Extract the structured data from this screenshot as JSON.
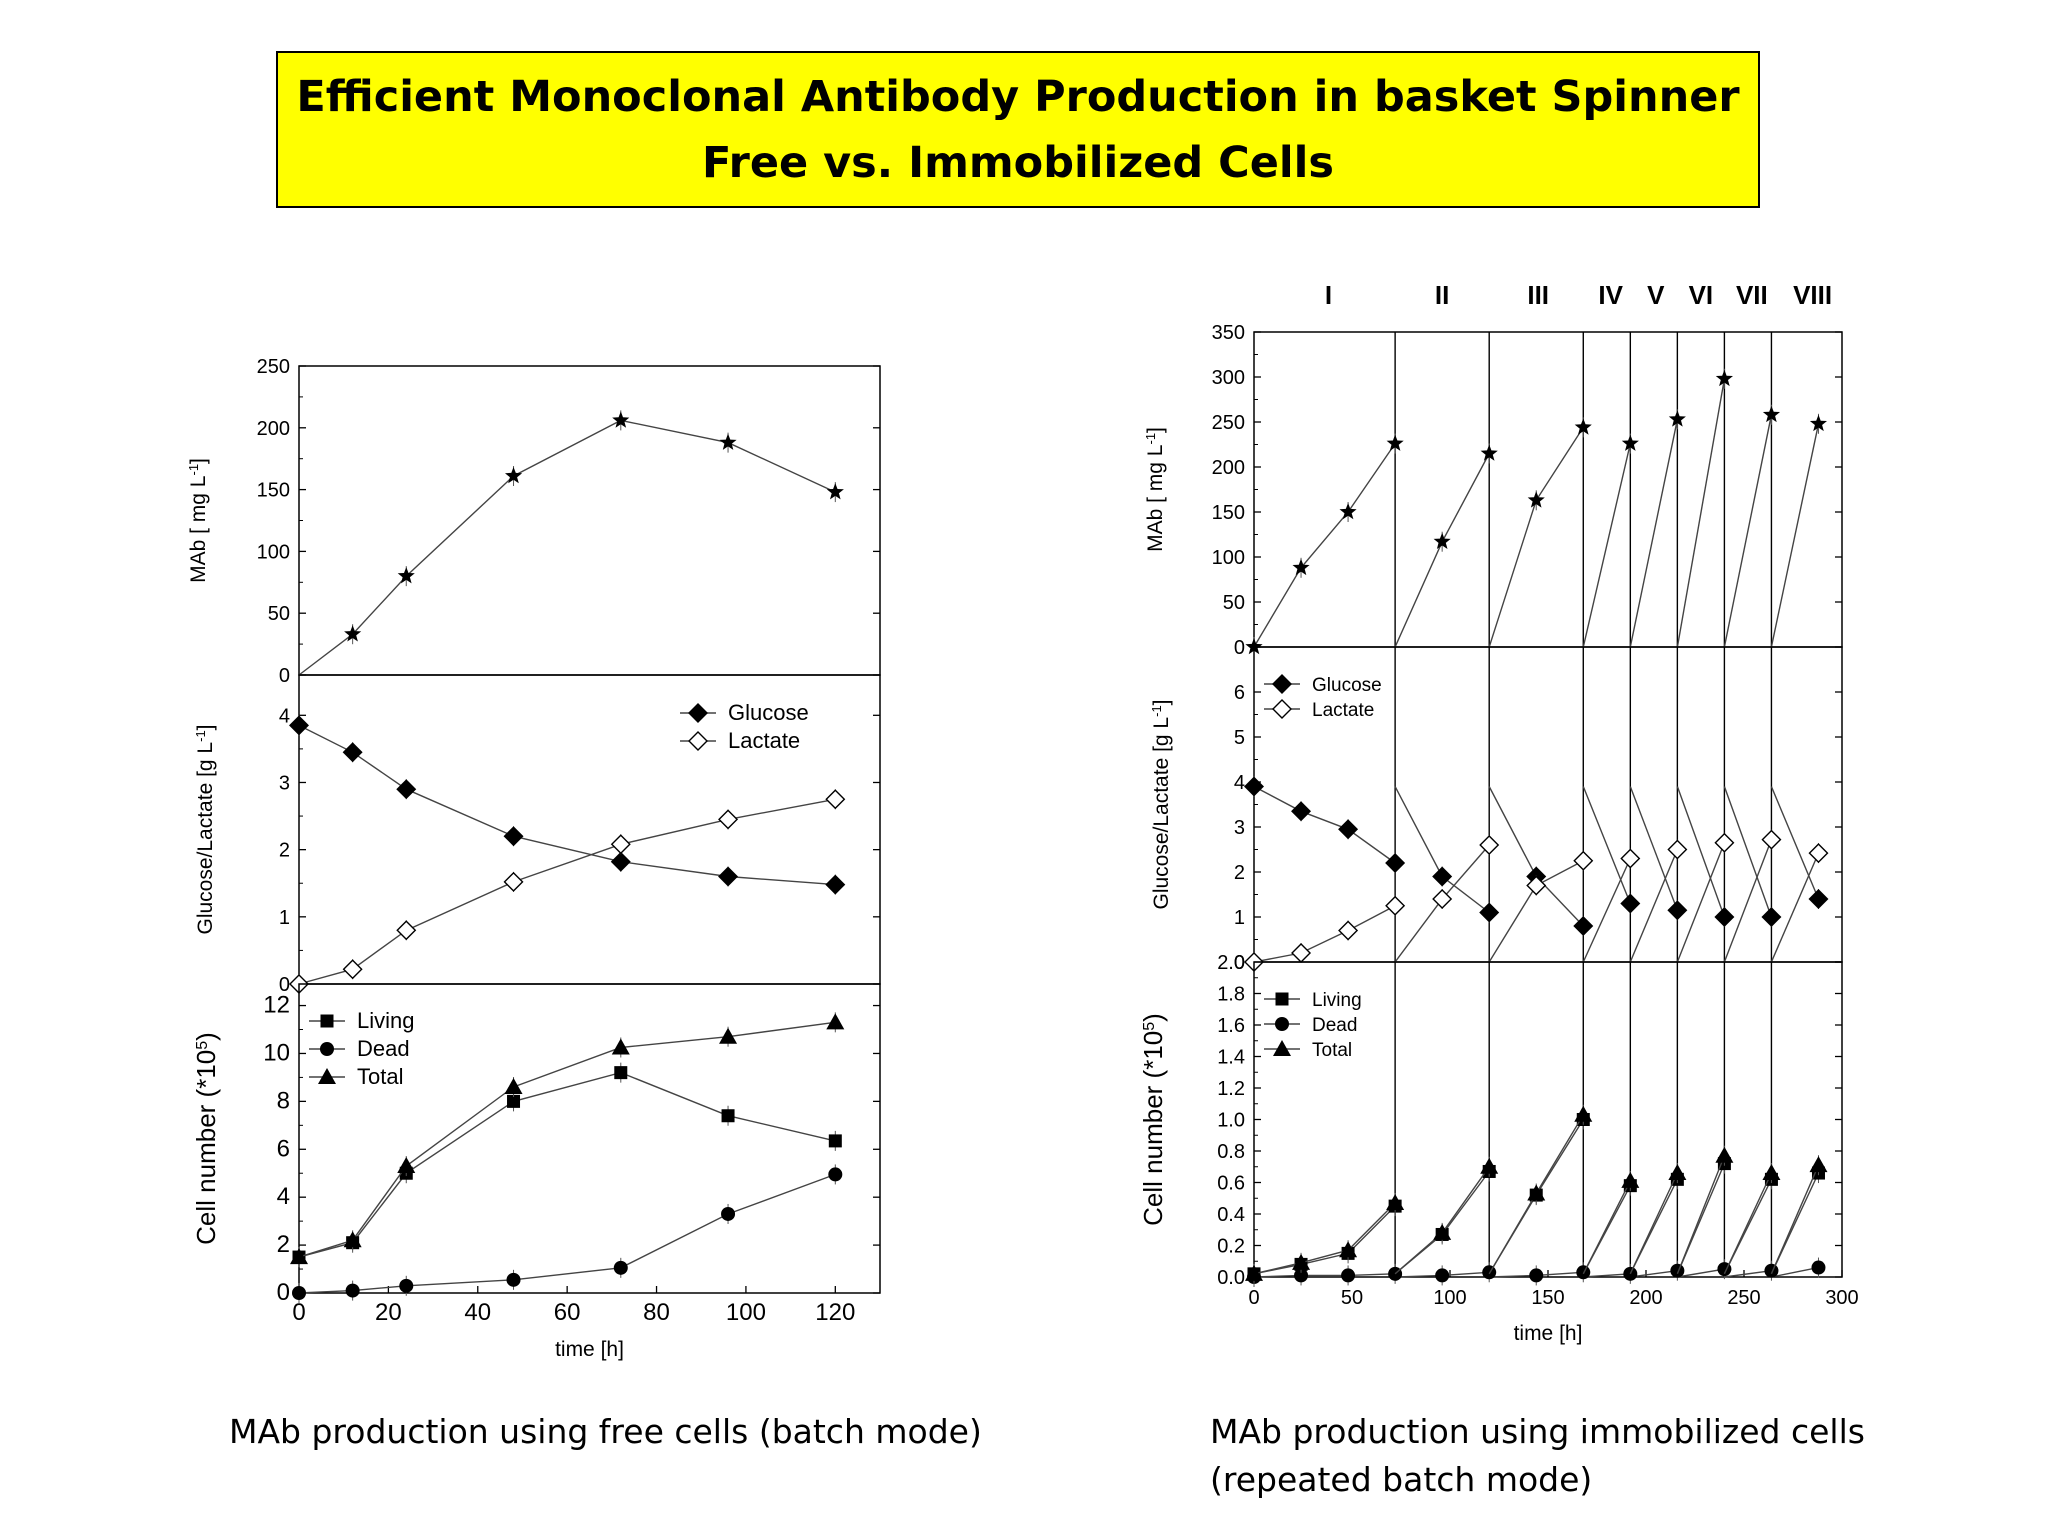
{
  "title": {
    "line1": "Efficient Monoclonal Antibody Production in basket Spinner",
    "line2": "Free vs. Immobilized Cells"
  },
  "captions": {
    "left": "MAb production using free cells (batch mode)",
    "right_line1": "MAb production using immobilized cells",
    "right_line2": "(repeated batch mode)"
  },
  "chart_data": [
    {
      "type": "line",
      "panel": "left-mab",
      "xlim": [
        0,
        130
      ],
      "ylim": [
        0,
        250
      ],
      "yticks": [
        0,
        50,
        100,
        150,
        200,
        250
      ],
      "ylabel": "MAb [ mg L-1]",
      "xlabel": "",
      "series": [
        {
          "marker": "star",
          "x": [
            0,
            12,
            24,
            48,
            72,
            96,
            120
          ],
          "y": [
            0,
            33,
            80,
            161,
            206,
            188,
            148
          ]
        }
      ]
    },
    {
      "type": "line",
      "panel": "left-gl",
      "xlim": [
        0,
        130
      ],
      "ylim": [
        0,
        4.6
      ],
      "yticks": [
        0,
        1,
        2,
        3,
        4
      ],
      "ylabel": "Glucose/Lactate [g L-1]",
      "legend_position": "top-right",
      "series": [
        {
          "name": "Glucose",
          "marker": "diamond-filled",
          "x": [
            0,
            12,
            24,
            48,
            72,
            96,
            120
          ],
          "y": [
            3.85,
            3.45,
            2.9,
            2.2,
            1.82,
            1.6,
            1.48
          ]
        },
        {
          "name": "Lactate",
          "marker": "diamond-open",
          "x": [
            0,
            12,
            24,
            48,
            72,
            96,
            120
          ],
          "y": [
            0,
            0.22,
            0.8,
            1.52,
            2.08,
            2.45,
            2.75
          ]
        }
      ]
    },
    {
      "type": "line",
      "panel": "left-cells",
      "xlim": [
        0,
        130
      ],
      "ylim": [
        0,
        12.9
      ],
      "yticks": [
        0,
        2,
        4,
        6,
        8,
        10,
        12
      ],
      "xticks": [
        0,
        20,
        40,
        60,
        80,
        100,
        120
      ],
      "ylabel": "Cell number (*10",
      "ylabel_sup": "5",
      "ylabel_tail": ")",
      "xlabel": "time [h]",
      "legend_position": "top-left",
      "series": [
        {
          "name": "Living",
          "marker": "square",
          "x": [
            0,
            12,
            24,
            48,
            72,
            96,
            120
          ],
          "y": [
            1.5,
            2.1,
            5.0,
            8.0,
            9.2,
            7.4,
            6.35
          ]
        },
        {
          "name": "Dead",
          "marker": "circle",
          "x": [
            0,
            12,
            24,
            48,
            72,
            96,
            120
          ],
          "y": [
            0,
            0.1,
            0.3,
            0.55,
            1.05,
            3.3,
            4.95
          ]
        },
        {
          "name": "Total",
          "marker": "triangle",
          "x": [
            0,
            12,
            24,
            48,
            72,
            96,
            120
          ],
          "y": [
            1.5,
            2.2,
            5.3,
            8.6,
            10.25,
            10.7,
            11.3
          ]
        }
      ]
    },
    {
      "type": "line",
      "panel": "right-mab",
      "xlim": [
        0,
        300
      ],
      "ylim": [
        0,
        350
      ],
      "yticks": [
        0,
        50,
        100,
        150,
        200,
        250,
        300,
        350
      ],
      "ylabel": "MAb [ mg L-1]",
      "phase_labels": [
        "I",
        "II",
        "III",
        "IV",
        "V",
        "VI",
        "VII",
        "VIII"
      ],
      "phase_label_x": [
        38,
        96,
        145,
        182,
        205,
        228,
        254,
        285
      ],
      "batch_boundaries": [
        72,
        120,
        168,
        192,
        216,
        240,
        264
      ],
      "series": [
        {
          "marker": "star",
          "segments": [
            [
              [
                0,
                0
              ],
              [
                24,
                88
              ],
              [
                48,
                150
              ],
              [
                72,
                226
              ]
            ],
            [
              [
                72,
                0
              ],
              [
                96,
                117
              ],
              [
                120,
                215
              ]
            ],
            [
              [
                120,
                0
              ],
              [
                144,
                163
              ],
              [
                168,
                244
              ]
            ],
            [
              [
                168,
                0
              ],
              [
                192,
                226
              ]
            ],
            [
              [
                192,
                0
              ],
              [
                216,
                253
              ]
            ],
            [
              [
                216,
                0
              ],
              [
                240,
                298
              ]
            ],
            [
              [
                240,
                0
              ],
              [
                264,
                258
              ]
            ],
            [
              [
                264,
                0
              ],
              [
                288,
                248
              ]
            ]
          ]
        }
      ]
    },
    {
      "type": "line",
      "panel": "right-gl",
      "xlim": [
        0,
        300
      ],
      "ylim": [
        0,
        7
      ],
      "yticks": [
        0,
        1,
        2,
        3,
        4,
        5,
        6
      ],
      "ylabel": "Glucose/Lactate [g L-1]",
      "legend_position": "top-left",
      "series": [
        {
          "name": "Glucose",
          "marker": "diamond-filled",
          "segments": [
            [
              [
                0,
                3.9
              ],
              [
                24,
                3.35
              ],
              [
                48,
                2.95
              ],
              [
                72,
                2.2
              ]
            ],
            [
              [
                72,
                3.9
              ],
              [
                96,
                1.9
              ],
              [
                120,
                1.1
              ]
            ],
            [
              [
                120,
                3.9
              ],
              [
                144,
                1.9
              ],
              [
                168,
                0.8
              ]
            ],
            [
              [
                168,
                3.9
              ],
              [
                192,
                1.3
              ]
            ],
            [
              [
                192,
                3.9
              ],
              [
                216,
                1.15
              ]
            ],
            [
              [
                216,
                3.9
              ],
              [
                240,
                1.0
              ]
            ],
            [
              [
                240,
                3.9
              ],
              [
                264,
                1.0
              ]
            ],
            [
              [
                264,
                3.9
              ],
              [
                288,
                1.4
              ]
            ]
          ]
        },
        {
          "name": "Lactate",
          "marker": "diamond-open",
          "segments": [
            [
              [
                0,
                0
              ],
              [
                24,
                0.2
              ],
              [
                48,
                0.7
              ],
              [
                72,
                1.25
              ]
            ],
            [
              [
                72,
                0
              ],
              [
                96,
                1.4
              ],
              [
                120,
                2.6
              ]
            ],
            [
              [
                120,
                0
              ],
              [
                144,
                1.7
              ],
              [
                168,
                2.25
              ]
            ],
            [
              [
                168,
                0
              ],
              [
                192,
                2.3
              ]
            ],
            [
              [
                192,
                0
              ],
              [
                216,
                2.5
              ]
            ],
            [
              [
                216,
                0
              ],
              [
                240,
                2.65
              ]
            ],
            [
              [
                240,
                0
              ],
              [
                264,
                2.72
              ]
            ],
            [
              [
                264,
                0
              ],
              [
                288,
                2.42
              ]
            ]
          ]
        }
      ]
    },
    {
      "type": "line",
      "panel": "right-cells",
      "xlim": [
        0,
        300
      ],
      "ylim": [
        0,
        2.0
      ],
      "yticks": [
        0,
        0.2,
        0.4,
        0.6,
        0.8,
        1.0,
        1.2,
        1.4,
        1.6,
        1.8,
        2.0
      ],
      "ytick_labels": [
        "0.0",
        "0.2",
        "0.4",
        "0.6",
        "0.8",
        "1.0",
        "1.2",
        "1.4",
        "1.6",
        "1.8",
        "2.0"
      ],
      "xticks": [
        0,
        50,
        100,
        150,
        200,
        250,
        300
      ],
      "ylabel": "Cell number (*10",
      "ylabel_sup": "5",
      "ylabel_tail": ")",
      "xlabel": "time [h]",
      "legend_position": "top-left",
      "series": [
        {
          "name": "Living",
          "marker": "square",
          "segments": [
            [
              [
                0,
                0.02
              ],
              [
                24,
                0.08
              ],
              [
                48,
                0.15
              ],
              [
                72,
                0.45
              ]
            ],
            [
              [
                72,
                0.02
              ],
              [
                96,
                0.27
              ],
              [
                120,
                0.67
              ]
            ],
            [
              [
                120,
                0.02
              ],
              [
                144,
                0.52
              ],
              [
                168,
                1.0
              ]
            ],
            [
              [
                168,
                0.02
              ],
              [
                192,
                0.58
              ]
            ],
            [
              [
                192,
                0.02
              ],
              [
                216,
                0.62
              ]
            ],
            [
              [
                216,
                0.02
              ],
              [
                240,
                0.72
              ]
            ],
            [
              [
                240,
                0.02
              ],
              [
                264,
                0.62
              ]
            ],
            [
              [
                264,
                0.02
              ],
              [
                288,
                0.66
              ]
            ]
          ]
        },
        {
          "name": "Dead",
          "marker": "circle",
          "segments": [
            [
              [
                0,
                0
              ],
              [
                24,
                0.01
              ],
              [
                48,
                0.01
              ],
              [
                72,
                0.02
              ]
            ],
            [
              [
                72,
                0
              ],
              [
                96,
                0.01
              ],
              [
                120,
                0.03
              ]
            ],
            [
              [
                120,
                0
              ],
              [
                144,
                0.01
              ],
              [
                168,
                0.03
              ]
            ],
            [
              [
                168,
                0
              ],
              [
                192,
                0.02
              ]
            ],
            [
              [
                192,
                0
              ],
              [
                216,
                0.04
              ]
            ],
            [
              [
                216,
                0
              ],
              [
                240,
                0.05
              ]
            ],
            [
              [
                240,
                0
              ],
              [
                264,
                0.04
              ]
            ],
            [
              [
                264,
                0
              ],
              [
                288,
                0.06
              ]
            ]
          ]
        },
        {
          "name": "Total",
          "marker": "triangle",
          "segments": [
            [
              [
                0,
                0.02
              ],
              [
                24,
                0.09
              ],
              [
                48,
                0.17
              ],
              [
                72,
                0.47
              ]
            ],
            [
              [
                72,
                0.02
              ],
              [
                96,
                0.28
              ],
              [
                120,
                0.7
              ]
            ],
            [
              [
                120,
                0.02
              ],
              [
                144,
                0.53
              ],
              [
                168,
                1.03
              ]
            ],
            [
              [
                168,
                0.02
              ],
              [
                192,
                0.61
              ]
            ],
            [
              [
                192,
                0.02
              ],
              [
                216,
                0.66
              ]
            ],
            [
              [
                216,
                0.02
              ],
              [
                240,
                0.77
              ]
            ],
            [
              [
                240,
                0.02
              ],
              [
                264,
                0.66
              ]
            ],
            [
              [
                264,
                0.02
              ],
              [
                288,
                0.71
              ]
            ]
          ]
        }
      ]
    }
  ]
}
